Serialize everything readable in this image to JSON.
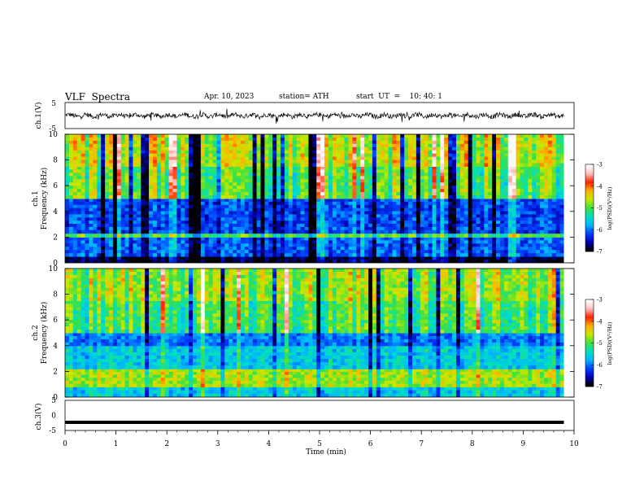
{
  "header": {
    "title": "VLF  Spectra",
    "date": "Apr. 10, 2023",
    "station": "station= ATH",
    "start_label": "start  UT  =    10: 40: 1"
  },
  "colormap": {
    "stops": [
      "#000000",
      "#0000b0",
      "#0040ff",
      "#00b4ff",
      "#00e0c0",
      "#40e040",
      "#c8e800",
      "#ffb000",
      "#ff2000",
      "#ffc0c0",
      "#ffffff"
    ]
  },
  "chart_data": [
    {
      "type": "line",
      "name": "ch1-time-series",
      "ylabel": "ch.1(V)",
      "ylim": [
        -5,
        5
      ],
      "yticks": [
        "5",
        "-5"
      ],
      "xlim": [
        0,
        10
      ],
      "duration_min": 9.8,
      "trace": "noisy waveform around 0 V with spikes",
      "color": "#000000"
    },
    {
      "type": "heatmap",
      "name": "ch1-spectrogram",
      "ylabel_top": "ch.1",
      "ylabel": "Frequency  (kHz)",
      "ylim": [
        0,
        10
      ],
      "yticks": [
        "0",
        "2",
        "4",
        "6",
        "8",
        "10"
      ],
      "xlim": [
        0,
        10
      ],
      "colorbar": {
        "label": "log(PSD)(V²/Hz)",
        "range": [
          -7,
          -3
        ],
        "ticks": [
          "-3",
          "-4",
          "-5",
          "-6",
          "-7"
        ]
      },
      "bands": [
        {
          "f_low": 0.0,
          "f_high": 0.5,
          "level": -6.9
        },
        {
          "f_low": 0.5,
          "f_high": 2.0,
          "level": -6.1
        },
        {
          "f_low": 2.0,
          "f_high": 2.3,
          "level": -5.0
        },
        {
          "f_low": 2.3,
          "f_high": 5.0,
          "level": -6.2
        },
        {
          "f_low": 5.0,
          "f_high": 7.5,
          "level": -5.0
        },
        {
          "f_low": 7.5,
          "f_high": 10.0,
          "level": -4.6
        }
      ]
    },
    {
      "type": "heatmap",
      "name": "ch2-spectrogram",
      "ylabel_top": "ch.2",
      "ylabel": "Frequency  (kHz)",
      "ylim": [
        0,
        10
      ],
      "yticks": [
        "0",
        "2",
        "4",
        "6",
        "8",
        "10"
      ],
      "xlim": [
        0,
        10
      ],
      "colorbar": {
        "label": "log(PSD)(V²/Hz)",
        "range": [
          -7,
          -3
        ],
        "ticks": [
          "-3",
          "-4",
          "-5",
          "-6",
          "-7"
        ]
      },
      "bands": [
        {
          "f_low": 0.0,
          "f_high": 0.8,
          "level": -5.6
        },
        {
          "f_low": 0.8,
          "f_high": 2.2,
          "level": -4.7
        },
        {
          "f_low": 2.2,
          "f_high": 4.0,
          "level": -5.6
        },
        {
          "f_low": 4.0,
          "f_high": 5.0,
          "level": -6.0
        },
        {
          "f_low": 5.0,
          "f_high": 7.5,
          "level": -5.1
        },
        {
          "f_low": 7.5,
          "f_high": 10.0,
          "level": -4.8
        }
      ]
    },
    {
      "type": "line",
      "name": "ch3-time-series",
      "ylabel": "ch.3(V)",
      "ylim": [
        -5,
        5
      ],
      "yticks": [
        "5",
        "0",
        "-5"
      ],
      "xlim": [
        0,
        10
      ],
      "level_v": -2.3,
      "duration_min": 9.8,
      "xlabel": "Time  (min)",
      "xticks": [
        "0",
        "1",
        "2",
        "3",
        "4",
        "5",
        "6",
        "7",
        "8",
        "9",
        "10"
      ],
      "color": "#000000"
    }
  ]
}
